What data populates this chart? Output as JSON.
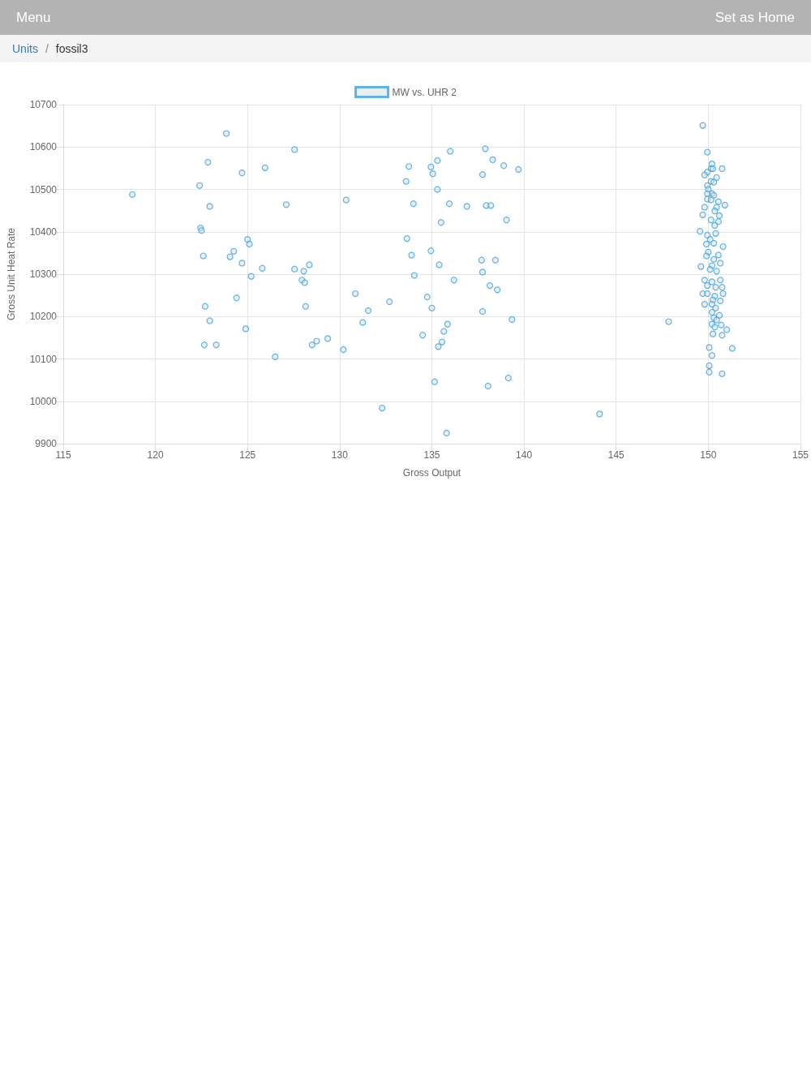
{
  "chart_data": {
    "type": "scatter",
    "xlabel": "Gross Output",
    "ylabel": "Gross Unit Heat Rate",
    "annotations": [
      "Menu",
      "Set as Home",
      "Units",
      "/",
      "fossil3"
    ],
    "legend": "top",
    "grid": true,
    "marker": "circle",
    "xlim": [
      115,
      155
    ],
    "xticks": [
      115,
      120,
      125,
      130,
      135,
      140,
      145,
      150,
      155
    ],
    "ylim": [
      9900,
      10700
    ],
    "yticks": [
      9900,
      10000,
      10100,
      10200,
      10300,
      10400,
      10500,
      10600,
      10700
    ],
    "series": [
      {
        "name": "MW vs. UHR 2",
        "color": "#36a2eb",
        "x": [
          118.75,
          123.85,
          122.85,
          124.7,
          125.95,
          122.4,
          122.95,
          122.45,
          122.5,
          125.0,
          125.1,
          124.25,
          124.05,
          122.6,
          124.7,
          125.8,
          125.2,
          124.4,
          122.7,
          122.95,
          124.9,
          122.65,
          123.3,
          126.5,
          127.55,
          127.1,
          130.35,
          127.55,
          128.35,
          128.05,
          127.95,
          128.1,
          128.15,
          128.5,
          128.75,
          129.35,
          130.2,
          130.85,
          131.55,
          131.25,
          132.7,
          132.3,
          133.75,
          133.6,
          134.0,
          133.65,
          133.9,
          134.05,
          134.95,
          135.05,
          135.3,
          135.3,
          136.0,
          135.5,
          135.95,
          136.9,
          137.95,
          138.2,
          137.9,
          138.3,
          137.75,
          138.9,
          139.7,
          139.05,
          134.95,
          135.4,
          134.75,
          135.0,
          136.2,
          137.7,
          138.45,
          137.75,
          138.15,
          138.55,
          137.75,
          139.35,
          135.85,
          135.65,
          134.5,
          135.55,
          135.35,
          135.15,
          139.15,
          138.05,
          135.8,
          144.1,
          147.85,
          149.7,
          149.95,
          150.2,
          150.15,
          150.25,
          150.75,
          149.95,
          149.8,
          150.45,
          150.15,
          150.3,
          149.95,
          150.0,
          150.2,
          149.95,
          150.3,
          149.95,
          150.15,
          150.55,
          150.9,
          149.8,
          150.45,
          150.35,
          149.7,
          150.6,
          150.15,
          150.55,
          150.35,
          149.55,
          149.95,
          150.4,
          150.1,
          150.3,
          149.9,
          150.8,
          150.0,
          150.55,
          149.9,
          150.3,
          149.6,
          150.2,
          150.65,
          150.1,
          150.45,
          149.8,
          150.2,
          150.65,
          149.95,
          150.4,
          150.75,
          149.7,
          149.95,
          150.35,
          150.8,
          150.25,
          150.65,
          149.8,
          150.2,
          150.4,
          150.2,
          150.6,
          150.3,
          150.45,
          150.2,
          150.7,
          150.35,
          151.0,
          150.25,
          150.75,
          150.05,
          151.3,
          150.2,
          150.05,
          150.05,
          150.75
        ],
        "values": [
          10488,
          10632,
          10564,
          10539,
          10551,
          10509,
          10460,
          10409,
          10403,
          10382,
          10371,
          10354,
          10341,
          10343,
          10326,
          10314,
          10295,
          10244,
          10224,
          10190,
          10171,
          10133,
          10133,
          10105,
          10594,
          10464,
          10475,
          10312,
          10322,
          10307,
          10286,
          10280,
          10224,
          10133,
          10142,
          10148,
          10122,
          10254,
          10214,
          10186,
          10235,
          9984,
          10554,
          10519,
          10466,
          10384,
          10345,
          10297,
          10553,
          10537,
          10568,
          10500,
          10590,
          10422,
          10466,
          10460,
          10462,
          10462,
          10596,
          10570,
          10535,
          10556,
          10547,
          10428,
          10355,
          10322,
          10246,
          10220,
          10286,
          10333,
          10333,
          10305,
          10273,
          10263,
          10212,
          10193,
          10182,
          10165,
          10156,
          10140,
          10129,
          10046,
          10055,
          10036,
          9925,
          9970,
          10188,
          10651,
          10588,
          10560,
          10549,
          10549,
          10549,
          10541,
          10534,
          10528,
          10519,
          10517,
          10509,
          10500,
          10490,
          10490,
          10486,
          10477,
          10475,
          10471,
          10463,
          10458,
          10458,
          10449,
          10440,
          10438,
          10428,
          10424,
          10415,
          10401,
          10392,
          10396,
          10382,
          10373,
          10371,
          10365,
          10352,
          10345,
          10343,
          10335,
          10318,
          10320,
          10326,
          10311,
          10307,
          10286,
          10282,
          10286,
          10273,
          10269,
          10269,
          10254,
          10254,
          10248,
          10254,
          10239,
          10237,
          10229,
          10229,
          10220,
          10210,
          10203,
          10197,
          10192,
          10182,
          10180,
          10175,
          10169,
          10159,
          10156,
          10127,
          10125,
          10108,
          10084,
          10069,
          10065
        ]
      }
    ]
  }
}
